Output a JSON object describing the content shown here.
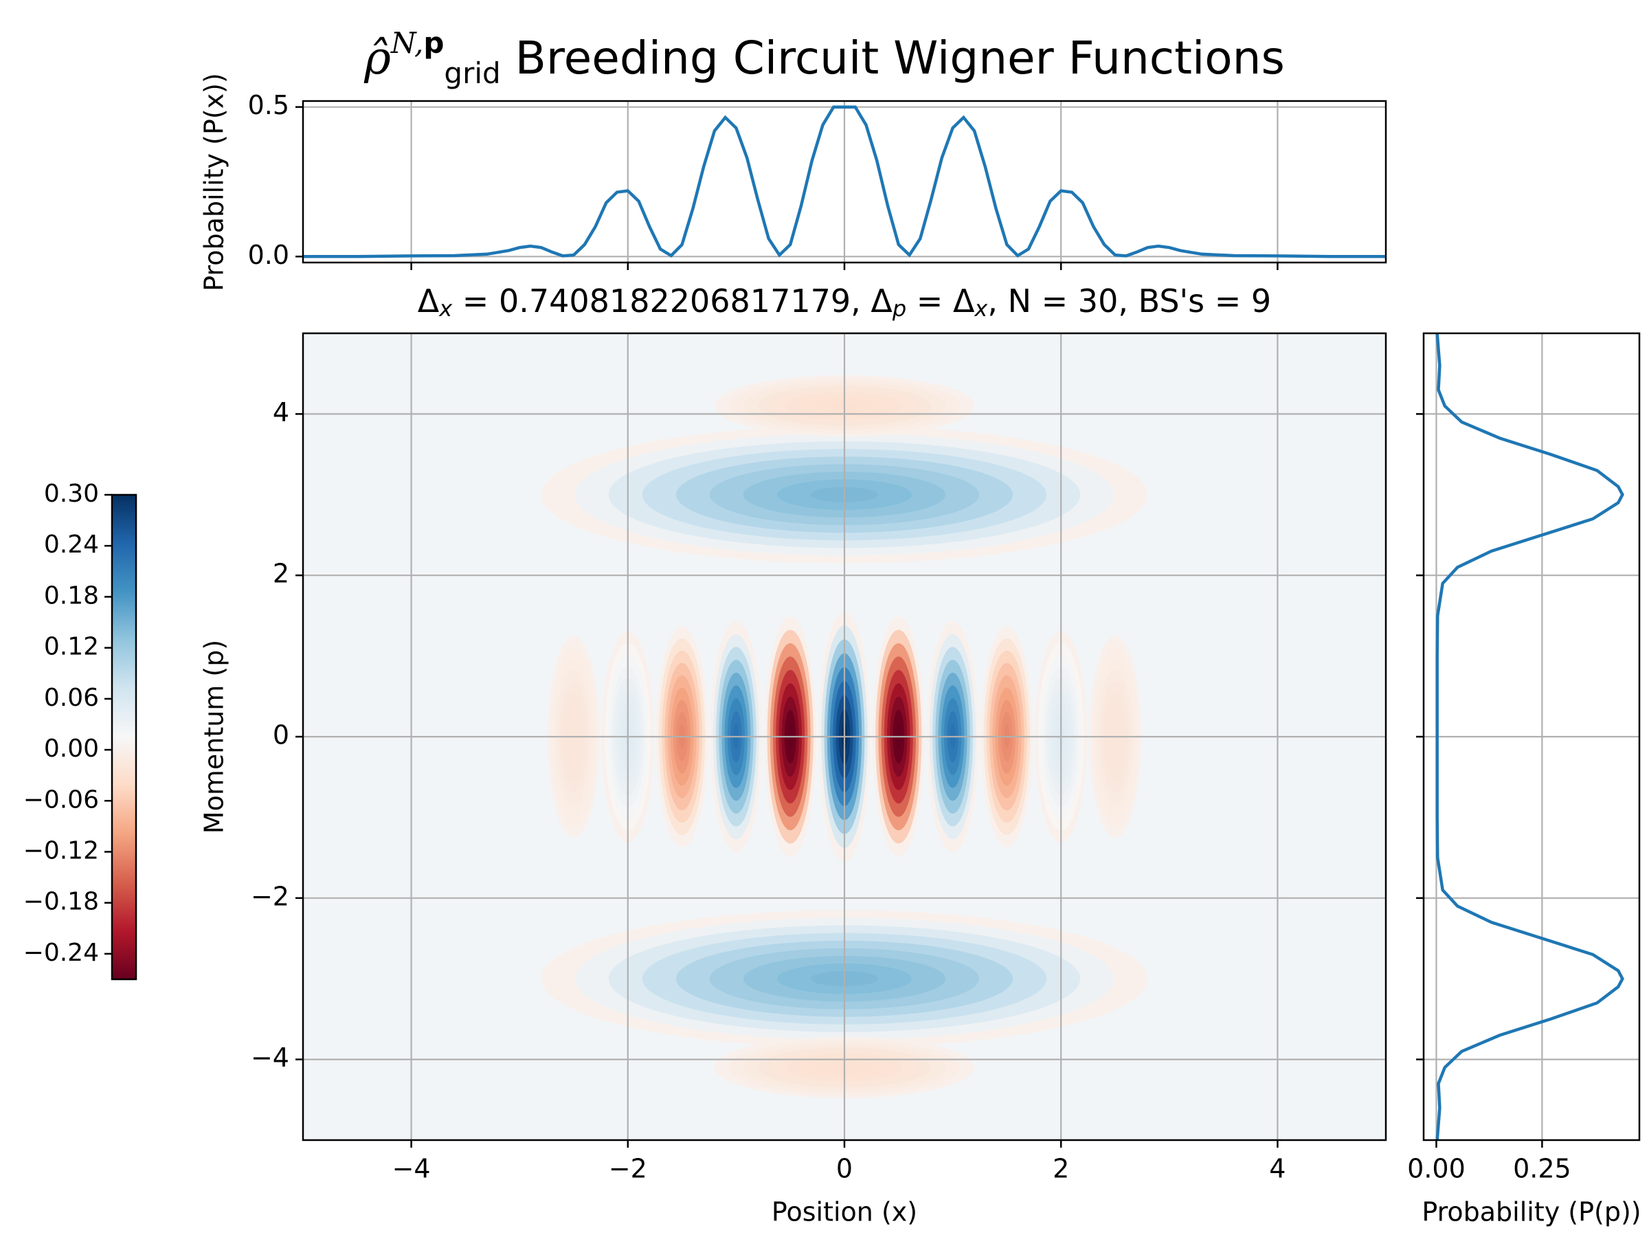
{
  "figure": {
    "title_symbol": "ρ̂",
    "title_symbol_sup": "N,",
    "title_symbol_sup_bold": "p",
    "title_symbol_sub": "grid",
    "title_text": " Breeding Circuit Wigner Functions"
  },
  "chart_data": [
    {
      "id": "marginal-x",
      "type": "line",
      "ylabel": "Probability (P(x))",
      "xlim": [
        -5,
        5
      ],
      "ylim": [
        -0.02,
        0.52
      ],
      "yticks": [
        "0.0",
        "0.5"
      ],
      "grid": true,
      "color": "#1f77b4",
      "x": [
        -5.0,
        -4.5,
        -4.0,
        -3.6,
        -3.3,
        -3.1,
        -3.0,
        -2.9,
        -2.8,
        -2.7,
        -2.6,
        -2.5,
        -2.4,
        -2.3,
        -2.2,
        -2.1,
        -2.0,
        -1.9,
        -1.8,
        -1.7,
        -1.6,
        -1.5,
        -1.4,
        -1.3,
        -1.2,
        -1.1,
        -1.0,
        -0.9,
        -0.8,
        -0.7,
        -0.6,
        -0.5,
        -0.4,
        -0.3,
        -0.2,
        -0.1,
        0.0,
        0.1,
        0.2,
        0.3,
        0.4,
        0.5,
        0.6,
        0.7,
        0.8,
        0.9,
        1.0,
        1.1,
        1.2,
        1.3,
        1.4,
        1.5,
        1.6,
        1.7,
        1.8,
        1.9,
        2.0,
        2.1,
        2.2,
        2.3,
        2.4,
        2.5,
        2.6,
        2.7,
        2.8,
        2.9,
        3.0,
        3.1,
        3.3,
        3.6,
        4.0,
        4.5,
        5.0
      ],
      "y": [
        0.0,
        0.0,
        0.002,
        0.003,
        0.008,
        0.02,
        0.03,
        0.035,
        0.03,
        0.015,
        0.002,
        0.005,
        0.04,
        0.1,
        0.18,
        0.215,
        0.22,
        0.185,
        0.1,
        0.025,
        0.003,
        0.04,
        0.16,
        0.3,
        0.42,
        0.465,
        0.43,
        0.33,
        0.19,
        0.06,
        0.005,
        0.04,
        0.17,
        0.32,
        0.44,
        0.5,
        0.5,
        0.5,
        0.44,
        0.32,
        0.17,
        0.04,
        0.005,
        0.06,
        0.19,
        0.33,
        0.43,
        0.465,
        0.42,
        0.3,
        0.16,
        0.04,
        0.003,
        0.025,
        0.1,
        0.185,
        0.22,
        0.215,
        0.18,
        0.1,
        0.04,
        0.005,
        0.002,
        0.015,
        0.03,
        0.035,
        0.03,
        0.02,
        0.008,
        0.003,
        0.002,
        0.0,
        0.0
      ]
    },
    {
      "id": "wigner",
      "type": "heatmap",
      "title": "Δx = 0.7408182206817179, Δp = Δx, N = 30, BS's = 9",
      "title_parts": {
        "delta_x_prefix": "Δ",
        "delta_x_sub": "x",
        "value_text": " = 0.7408182206817179, ",
        "delta_p_prefix": "Δ",
        "delta_p_sub": "p",
        "eq_text": " = ",
        "delta_x2_prefix": "Δ",
        "delta_x2_sub": "x",
        "tail_text": ", N = 30, BS's = 9"
      },
      "xlabel": "Position (x)",
      "ylabel": "Momentum (p)",
      "xlim": [
        -5,
        5
      ],
      "ylim": [
        -5,
        5
      ],
      "xticks": [
        "−4",
        "−2",
        "0",
        "2",
        "4"
      ],
      "yticks": [
        "−4",
        "−2",
        "0",
        "2",
        "4"
      ],
      "grid": true,
      "colormap": "RdBu",
      "vmin": -0.27,
      "vmax": 0.3,
      "features": [
        {
          "x": 0.0,
          "p": 0.0,
          "value": 0.29
        },
        {
          "x": 0.5,
          "p": 0.0,
          "value": -0.27
        },
        {
          "x": -0.5,
          "p": 0.0,
          "value": -0.27
        },
        {
          "x": 1.0,
          "p": 0.0,
          "value": 0.22
        },
        {
          "x": -1.0,
          "p": 0.0,
          "value": 0.22
        },
        {
          "x": 1.5,
          "p": 0.0,
          "value": -0.12
        },
        {
          "x": -1.5,
          "p": 0.0,
          "value": -0.12
        },
        {
          "x": 2.0,
          "p": 0.0,
          "value": 0.05
        },
        {
          "x": -2.0,
          "p": 0.0,
          "value": 0.05
        },
        {
          "x": 2.5,
          "p": 0.0,
          "value": -0.02
        },
        {
          "x": -2.5,
          "p": 0.0,
          "value": -0.02
        },
        {
          "x": 0.0,
          "p": 3.0,
          "value": 0.14
        },
        {
          "x": 0.0,
          "p": -3.0,
          "value": 0.14
        },
        {
          "x": 0.0,
          "p": 4.1,
          "value": -0.03
        },
        {
          "x": 0.0,
          "p": -4.1,
          "value": -0.03
        }
      ]
    },
    {
      "id": "marginal-p",
      "type": "line",
      "xlabel": "Probability (P(p))",
      "xlim": [
        -0.03,
        0.48
      ],
      "ylim": [
        -5,
        5
      ],
      "xticks": [
        "0.00",
        "0.25"
      ],
      "grid": true,
      "color": "#1f77b4",
      "p": [
        -5.0,
        -4.6,
        -4.3,
        -4.1,
        -3.9,
        -3.7,
        -3.5,
        -3.3,
        -3.1,
        -3.0,
        -2.9,
        -2.7,
        -2.5,
        -2.3,
        -2.1,
        -1.9,
        -1.5,
        -1.0,
        0.0,
        1.0,
        1.5,
        1.9,
        2.1,
        2.3,
        2.5,
        2.7,
        2.9,
        3.0,
        3.1,
        3.3,
        3.5,
        3.7,
        3.9,
        4.1,
        4.3,
        4.6,
        5.0
      ],
      "P": [
        0.002,
        0.008,
        0.005,
        0.02,
        0.06,
        0.15,
        0.27,
        0.38,
        0.43,
        0.44,
        0.43,
        0.37,
        0.25,
        0.13,
        0.05,
        0.015,
        0.003,
        0.002,
        0.002,
        0.002,
        0.003,
        0.015,
        0.05,
        0.13,
        0.25,
        0.37,
        0.43,
        0.44,
        0.43,
        0.38,
        0.27,
        0.15,
        0.06,
        0.02,
        0.005,
        0.008,
        0.002
      ]
    }
  ],
  "colorbar": {
    "ticks": [
      "0.30",
      "0.24",
      "0.18",
      "0.12",
      "0.06",
      "0.00",
      "−0.06",
      "−0.12",
      "−0.18",
      "−0.24"
    ]
  }
}
